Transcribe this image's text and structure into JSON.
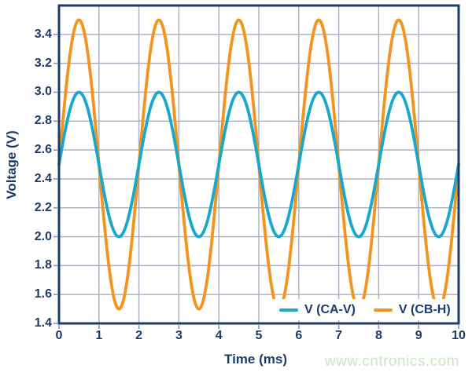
{
  "chart_data": {
    "type": "line",
    "xlabel": "Time (ms)",
    "ylabel": "Voltage (V)",
    "xlim": [
      0,
      10
    ],
    "ylim": [
      1.4,
      3.6
    ],
    "x_ticks": [
      0,
      1,
      2,
      3,
      4,
      5,
      6,
      7,
      8,
      9,
      10
    ],
    "y_ticks": [
      1.4,
      1.6,
      1.8,
      2.0,
      2.2,
      2.4,
      2.6,
      2.8,
      3.0,
      3.2,
      3.4
    ],
    "y_tick_decimals": 1,
    "grid": true,
    "legend": {
      "position": "inside-bottom-right",
      "entries": [
        "V (CA-V)",
        "V (CB-H)"
      ]
    },
    "series": [
      {
        "name": "V (CA-V)",
        "color": "#1aa7c9",
        "waveform": "sine",
        "offset_v": 2.5,
        "amplitude_v": 0.5,
        "period_ms": 2,
        "phase_deg": 0,
        "min_v": 2.0,
        "max_v": 3.0,
        "formula": "V(t) = 2.5 + 0.5*sin(2*pi*t/2ms)"
      },
      {
        "name": "V (CB-H)",
        "color": "#f3941e",
        "waveform": "sine",
        "offset_v": 2.5,
        "amplitude_v": 1.0,
        "period_ms": 2,
        "phase_deg": 0,
        "min_v": 1.5,
        "max_v": 3.5,
        "formula": "V(t) = 2.5 + 1.0*sin(2*pi*t/2ms)"
      }
    ]
  },
  "watermark": {
    "text": "www.cntronics.com",
    "color": "#cbe7c5"
  },
  "style": {
    "axis_color": "#1b3c69",
    "grid_color": "#a9aec0",
    "tick_color": "#8d93a8",
    "text_color": "#1b3c69",
    "plot_background": "#ffffff",
    "page_background": "#ffffff"
  }
}
